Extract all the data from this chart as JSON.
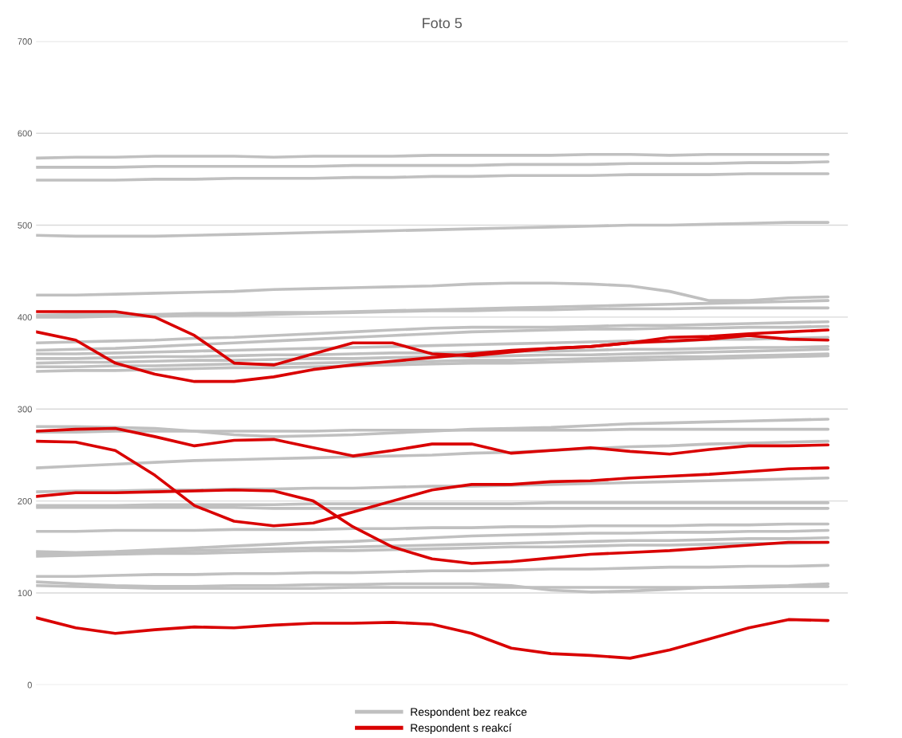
{
  "chart_data": {
    "type": "line",
    "title": "Foto 5",
    "categories": [
      null,
      null,
      null,
      null,
      null,
      null,
      null,
      null,
      null,
      null,
      null,
      null,
      null,
      null,
      null,
      null,
      null,
      null,
      null,
      null,
      null
    ],
    "ylim": [
      0,
      700
    ],
    "yticks": [
      0,
      100,
      200,
      300,
      400,
      500,
      600,
      700
    ],
    "grid": "y",
    "legend": "bottom",
    "marker": "none",
    "line_style": "solid",
    "tick_labels": "y",
    "series": [
      {
        "name": "Respondent bez reakce",
        "color": "#c0c0c0",
        "values": [
          573,
          574,
          574,
          575,
          575,
          575,
          574,
          575,
          575,
          575,
          576,
          576,
          576,
          576,
          577,
          577,
          576,
          577,
          577,
          577,
          577
        ]
      },
      {
        "color": "#c0c0c0",
        "values": [
          563,
          563,
          563,
          564,
          564,
          564,
          564,
          564,
          565,
          565,
          565,
          565,
          566,
          566,
          566,
          567,
          567,
          567,
          568,
          568,
          569
        ]
      },
      {
        "color": "#c0c0c0",
        "values": [
          549,
          549,
          549,
          550,
          550,
          551,
          551,
          551,
          552,
          552,
          553,
          553,
          554,
          554,
          554,
          555,
          555,
          555,
          556,
          556,
          556
        ]
      },
      {
        "color": "#c0c0c0",
        "values": [
          489,
          488,
          488,
          488,
          489,
          490,
          491,
          492,
          493,
          494,
          495,
          496,
          497,
          498,
          499,
          500,
          500,
          501,
          502,
          503,
          503
        ]
      },
      {
        "color": "#c0c0c0",
        "values": [
          424,
          424,
          425,
          426,
          427,
          428,
          430,
          431,
          432,
          433,
          434,
          436,
          437,
          437,
          436,
          434,
          428,
          418,
          418,
          421,
          422
        ]
      },
      {
        "color": "#c0c0c0",
        "values": [
          400,
          400,
          401,
          401,
          402,
          402,
          403,
          404,
          405,
          406,
          407,
          407,
          408,
          408,
          409,
          409,
          409,
          410,
          410,
          410,
          410
        ]
      },
      {
        "color": "#c0c0c0",
        "values": [
          402,
          403,
          403,
          403,
          404,
          404,
          405,
          405,
          406,
          407,
          408,
          409,
          410,
          411,
          412,
          413,
          414,
          415,
          416,
          417,
          418
        ]
      },
      {
        "color": "#c0c0c0",
        "values": [
          372,
          373,
          374,
          375,
          377,
          378,
          380,
          382,
          384,
          386,
          388,
          389,
          389,
          389,
          390,
          391,
          391,
          392,
          393,
          394,
          395
        ]
      },
      {
        "color": "#c0c0c0",
        "values": [
          364,
          365,
          366,
          368,
          370,
          372,
          374,
          376,
          378,
          380,
          382,
          384,
          385,
          386,
          387,
          387,
          388,
          388,
          389,
          389,
          390
        ]
      },
      {
        "color": "#c0c0c0",
        "values": [
          360,
          360,
          361,
          362,
          363,
          364,
          365,
          366,
          367,
          368,
          369,
          370,
          371,
          372,
          373,
          374,
          373,
          376,
          376,
          377,
          378
        ]
      },
      {
        "color": "#c0c0c0",
        "values": [
          355,
          355,
          356,
          357,
          357,
          358,
          359,
          359,
          360,
          361,
          361,
          362,
          363,
          363,
          364,
          365,
          365,
          366,
          367,
          367,
          368
        ]
      },
      {
        "color": "#c0c0c0",
        "values": [
          350,
          351,
          351,
          352,
          353,
          353,
          354,
          355,
          355,
          356,
          357,
          357,
          358,
          359,
          359,
          360,
          361,
          362,
          363,
          364,
          365
        ]
      },
      {
        "color": "#c0c0c0",
        "values": [
          346,
          346,
          347,
          347,
          348,
          349,
          349,
          350,
          351,
          351,
          352,
          353,
          353,
          354,
          355,
          356,
          357,
          357,
          358,
          359,
          360
        ]
      },
      {
        "color": "#c0c0c0",
        "values": [
          341,
          342,
          342,
          343,
          344,
          345,
          345,
          346,
          347,
          348,
          349,
          350,
          350,
          351,
          352,
          353,
          354,
          355,
          356,
          357,
          358
        ]
      },
      {
        "color": "#c0c0c0",
        "values": [
          281,
          281,
          280,
          279,
          276,
          272,
          270,
          271,
          272,
          274,
          276,
          278,
          279,
          280,
          282,
          284,
          285,
          286,
          287,
          288,
          289
        ]
      },
      {
        "color": "#c0c0c0",
        "values": [
          275,
          275,
          276,
          276,
          276,
          276,
          276,
          276,
          277,
          277,
          277,
          277,
          277,
          277,
          277,
          278,
          278,
          278,
          278,
          278,
          278
        ]
      },
      {
        "color": "#c0c0c0",
        "values": [
          236,
          238,
          240,
          242,
          244,
          245,
          246,
          247,
          248,
          249,
          250,
          252,
          253,
          255,
          257,
          259,
          260,
          262,
          263,
          264,
          265
        ]
      },
      {
        "color": "#c0c0c0",
        "values": [
          210,
          211,
          211,
          212,
          212,
          213,
          213,
          214,
          214,
          215,
          216,
          216,
          217,
          218,
          219,
          220,
          221,
          222,
          223,
          224,
          225
        ]
      },
      {
        "color": "#c0c0c0",
        "values": [
          195,
          195,
          195,
          196,
          196,
          196,
          196,
          197,
          197,
          197,
          197,
          197,
          197,
          198,
          198,
          198,
          198,
          198,
          198,
          198,
          198
        ]
      },
      {
        "color": "#c0c0c0",
        "values": [
          193,
          193,
          193,
          193,
          193,
          193,
          192,
          192,
          192,
          192,
          192,
          192,
          192,
          192,
          192,
          192,
          192,
          192,
          192,
          192,
          192
        ]
      },
      {
        "color": "#c0c0c0",
        "values": [
          167,
          167,
          168,
          168,
          168,
          169,
          169,
          169,
          170,
          170,
          171,
          171,
          172,
          172,
          173,
          173,
          173,
          174,
          174,
          175,
          175
        ]
      },
      {
        "color": "#c0c0c0",
        "values": [
          145,
          144,
          145,
          147,
          149,
          151,
          153,
          155,
          156,
          158,
          160,
          162,
          163,
          164,
          165,
          165,
          166,
          166,
          167,
          167,
          168
        ]
      },
      {
        "color": "#c0c0c0",
        "values": [
          143,
          143,
          144,
          145,
          146,
          147,
          148,
          149,
          150,
          151,
          152,
          153,
          154,
          155,
          156,
          157,
          157,
          158,
          159,
          159,
          160
        ]
      },
      {
        "color": "#c0c0c0",
        "values": [
          140,
          141,
          142,
          143,
          143,
          144,
          145,
          146,
          146,
          147,
          148,
          149,
          150,
          150,
          151,
          152,
          152,
          153,
          154,
          154,
          155
        ]
      },
      {
        "color": "#c0c0c0",
        "values": [
          118,
          118,
          119,
          120,
          120,
          121,
          121,
          122,
          122,
          123,
          124,
          124,
          125,
          126,
          126,
          127,
          128,
          128,
          129,
          129,
          130
        ]
      },
      {
        "color": "#c0c0c0",
        "values": [
          112,
          110,
          108,
          107,
          107,
          108,
          108,
          109,
          109,
          110,
          110,
          110,
          108,
          103,
          101,
          102,
          104,
          106,
          107,
          108,
          110
        ]
      },
      {
        "color": "#c0c0c0",
        "values": [
          108,
          107,
          106,
          105,
          105,
          105,
          105,
          105,
          106,
          106,
          106,
          106,
          106,
          106,
          106,
          106,
          106,
          106,
          106,
          107,
          107
        ]
      },
      {
        "name": "Respondent s reakcí",
        "color": "#d90000",
        "values": [
          406,
          406,
          406,
          400,
          380,
          350,
          348,
          360,
          372,
          372,
          360,
          358,
          362,
          366,
          368,
          372,
          374,
          376,
          380,
          376,
          375
        ]
      },
      {
        "color": "#d90000",
        "values": [
          384,
          375,
          350,
          338,
          330,
          330,
          335,
          343,
          348,
          352,
          356,
          360,
          364,
          366,
          368,
          372,
          378,
          379,
          382,
          384,
          386
        ]
      },
      {
        "color": "#d90000",
        "values": [
          276,
          278,
          279,
          270,
          260,
          266,
          267,
          258,
          249,
          255,
          262,
          262,
          252,
          255,
          258,
          254,
          251,
          256,
          260,
          260,
          261
        ]
      },
      {
        "color": "#d90000",
        "values": [
          265,
          264,
          255,
          228,
          195,
          178,
          173,
          176,
          188,
          200,
          212,
          218,
          218,
          221,
          222,
          225,
          227,
          229,
          232,
          235,
          236
        ]
      },
      {
        "color": "#d90000",
        "values": [
          205,
          209,
          209,
          210,
          211,
          212,
          211,
          200,
          172,
          150,
          137,
          132,
          134,
          138,
          142,
          144,
          146,
          149,
          152,
          155,
          155
        ]
      },
      {
        "color": "#d90000",
        "values": [
          73,
          62,
          56,
          60,
          63,
          62,
          65,
          67,
          67,
          68,
          66,
          56,
          40,
          34,
          32,
          29,
          38,
          50,
          62,
          71,
          70
        ]
      }
    ]
  }
}
